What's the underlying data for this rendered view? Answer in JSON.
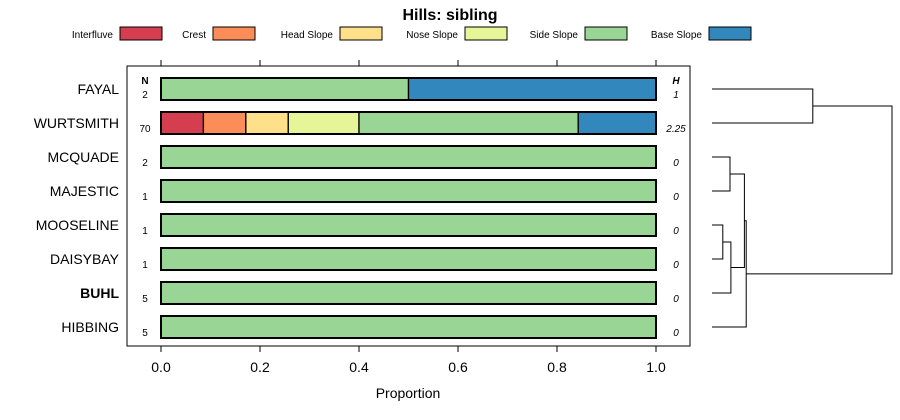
{
  "chart_data": {
    "type": "bar",
    "stacked": true,
    "orientation": "horizontal",
    "title": "Hills: sibling",
    "xlabel": "Proportion",
    "xlim": [
      0,
      1
    ],
    "xticks": [
      "0.0",
      "0.2",
      "0.4",
      "0.6",
      "0.8",
      "1.0"
    ],
    "xtick_values": [
      0,
      0.2,
      0.4,
      0.6,
      0.8,
      1.0
    ],
    "n_header": "N",
    "h_header": "H",
    "legend_placement": "top",
    "series": [
      {
        "name": "Interfluve",
        "color": "#D53E4F"
      },
      {
        "name": "Crest",
        "color": "#FC8D59"
      },
      {
        "name": "Head Slope",
        "color": "#FEE08B"
      },
      {
        "name": "Nose Slope",
        "color": "#E6F598"
      },
      {
        "name": "Side Slope",
        "color": "#99D594"
      },
      {
        "name": "Base Slope",
        "color": "#3288BD"
      }
    ],
    "categories": [
      {
        "label": "FAYAL",
        "bold": false,
        "n": "2",
        "h": "1",
        "values": [
          0,
          0,
          0,
          0,
          0.5,
          0.5
        ]
      },
      {
        "label": "WURTSMITH",
        "bold": false,
        "n": "70",
        "h": "2.25",
        "values": [
          0.0857,
          0.0857,
          0.0857,
          0.1429,
          0.4429,
          0.1571
        ]
      },
      {
        "label": "MCQUADE",
        "bold": false,
        "n": "2",
        "h": "0",
        "values": [
          0,
          0,
          0,
          0,
          1,
          0
        ]
      },
      {
        "label": "MAJESTIC",
        "bold": false,
        "n": "1",
        "h": "0",
        "values": [
          0,
          0,
          0,
          0,
          1,
          0
        ]
      },
      {
        "label": "MOOSELINE",
        "bold": false,
        "n": "1",
        "h": "0",
        "values": [
          0,
          0,
          0,
          0,
          1,
          0
        ]
      },
      {
        "label": "DAISYBAY",
        "bold": false,
        "n": "1",
        "h": "0",
        "values": [
          0,
          0,
          0,
          0,
          1,
          0
        ]
      },
      {
        "label": "BUHL",
        "bold": true,
        "n": "5",
        "h": "0",
        "values": [
          0,
          0,
          0,
          0,
          1,
          0
        ]
      },
      {
        "label": "HIBBING",
        "bold": false,
        "n": "5",
        "h": "0",
        "values": [
          0,
          0,
          0,
          0,
          1,
          0
        ]
      }
    ],
    "dendrogram": {
      "merges": [
        {
          "a": 0,
          "b": 1,
          "height": 0.56
        },
        {
          "a": 2,
          "b": 3,
          "height": 0.1
        },
        {
          "a": 4,
          "b": 5,
          "height": 0.06
        },
        {
          "a": "m2",
          "b": 6,
          "height": 0.105
        },
        {
          "a": "m1",
          "b": "m3",
          "height": 0.18
        },
        {
          "a": "m4",
          "b": 7,
          "height": 0.19
        },
        {
          "a": "m0",
          "b": "m5",
          "height": 1.0
        }
      ]
    }
  }
}
